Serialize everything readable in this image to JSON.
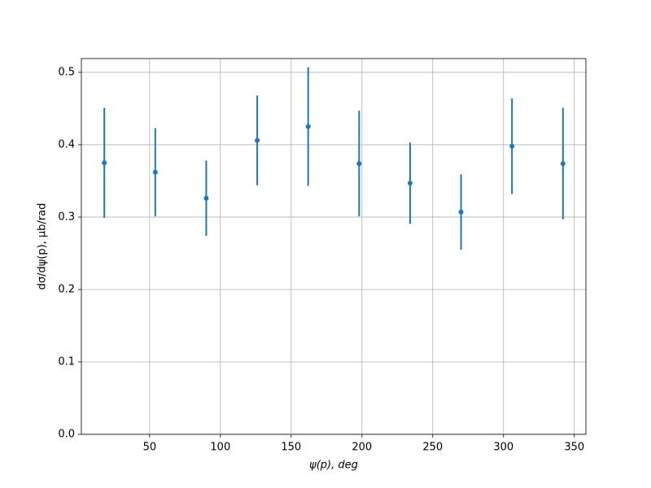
{
  "chart_data": {
    "type": "errorbar",
    "x_label": "ψ(p), deg",
    "y_label": "dσ/dψ(p), μb/rad",
    "x": [
      18,
      54,
      90,
      126,
      162,
      198,
      234,
      270,
      306,
      342
    ],
    "series": [
      {
        "color": "#1f77b4",
        "values": [
          0.375,
          0.362,
          0.326,
          0.406,
          0.425,
          0.374,
          0.347,
          0.307,
          0.398,
          0.374
        ],
        "errors": [
          0.076,
          0.061,
          0.052,
          0.062,
          0.082,
          0.073,
          0.056,
          0.052,
          0.066,
          0.077
        ]
      }
    ],
    "xlim": [
      1.8,
      358.2
    ],
    "ylim": [
      0,
      0.519
    ],
    "xticks": [
      50,
      100,
      150,
      200,
      250,
      300,
      350
    ],
    "yticks": [
      {
        "value": 0,
        "label": "0.0"
      },
      0.1,
      0.2,
      0.3,
      0.4,
      0.5
    ],
    "grid": true
  }
}
